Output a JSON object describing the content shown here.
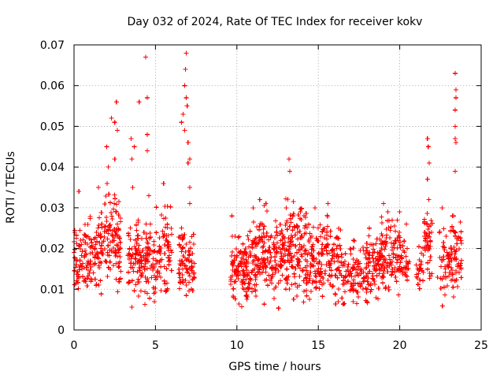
{
  "chart_data": {
    "type": "scatter",
    "title": "Day 032 of 2024, Rate Of TEC Index for receiver kokv",
    "xlabel": "GPS time / hours",
    "ylabel": "ROTI / TECUs",
    "xlim": [
      0,
      25
    ],
    "ylim": [
      0,
      0.07
    ],
    "xticks": [
      0,
      5,
      10,
      15,
      20,
      25
    ],
    "xtick_labels": [
      "0",
      "5",
      "10",
      "15",
      "20",
      "25"
    ],
    "yticks": [
      0,
      0.01,
      0.02,
      0.03,
      0.04,
      0.05,
      0.06,
      0.07
    ],
    "ytick_labels": [
      "0",
      "0.01",
      "0.02",
      "0.03",
      "0.04",
      "0.05",
      "0.06",
      "0.07"
    ],
    "grid": true,
    "marker": "+",
    "color": "#ff0000",
    "clusters": [
      {
        "start": 0.0,
        "end": 0.5,
        "density": 40,
        "low": 0.007,
        "high": 0.026,
        "outliers": [
          [
            0.3,
            0.034
          ]
        ]
      },
      {
        "start": 0.5,
        "end": 1.2,
        "density": 55,
        "low": 0.004,
        "high": 0.028,
        "outliers": []
      },
      {
        "start": 1.2,
        "end": 1.9,
        "density": 55,
        "low": 0.006,
        "high": 0.031,
        "outliers": [
          [
            1.5,
            0.035
          ]
        ]
      },
      {
        "start": 1.9,
        "end": 2.6,
        "density": 60,
        "low": 0.006,
        "high": 0.036,
        "outliers": [
          [
            2.0,
            0.045
          ],
          [
            2.1,
            0.04
          ],
          [
            2.3,
            0.052
          ],
          [
            2.5,
            0.051
          ],
          [
            2.5,
            0.042
          ]
        ]
      },
      {
        "start": 2.6,
        "end": 2.9,
        "density": 35,
        "low": 0.004,
        "high": 0.033,
        "outliers": [
          [
            2.6,
            0.056
          ],
          [
            2.65,
            0.049
          ]
        ]
      },
      {
        "start": 3.3,
        "end": 4.1,
        "density": 70,
        "low": 0.005,
        "high": 0.027,
        "outliers": [
          [
            3.5,
            0.047
          ],
          [
            3.55,
            0.042
          ],
          [
            3.7,
            0.045
          ],
          [
            3.6,
            0.035
          ],
          [
            4.0,
            0.056
          ]
        ]
      },
      {
        "start": 4.1,
        "end": 5.0,
        "density": 75,
        "low": 0.004,
        "high": 0.026,
        "outliers": [
          [
            4.4,
            0.067
          ],
          [
            4.5,
            0.057
          ],
          [
            4.5,
            0.048
          ],
          [
            4.5,
            0.044
          ],
          [
            4.6,
            0.033
          ]
        ]
      },
      {
        "start": 5.0,
        "end": 6.0,
        "density": 70,
        "low": 0.003,
        "high": 0.031,
        "outliers": [
          [
            5.5,
            0.036
          ]
        ]
      },
      {
        "start": 6.4,
        "end": 7.4,
        "density": 80,
        "low": 0.005,
        "high": 0.026,
        "outliers": [
          [
            6.6,
            0.051
          ],
          [
            6.7,
            0.053
          ],
          [
            6.8,
            0.06
          ],
          [
            6.85,
            0.064
          ],
          [
            6.9,
            0.068
          ],
          [
            6.9,
            0.057
          ],
          [
            6.95,
            0.055
          ],
          [
            7.0,
            0.041
          ],
          [
            7.0,
            0.046
          ],
          [
            7.1,
            0.042
          ],
          [
            6.8,
            0.049
          ],
          [
            7.1,
            0.035
          ],
          [
            7.1,
            0.031
          ]
        ]
      },
      {
        "start": 9.6,
        "end": 10.5,
        "density": 80,
        "low": 0.004,
        "high": 0.023,
        "outliers": [
          [
            9.7,
            0.028
          ]
        ]
      },
      {
        "start": 10.5,
        "end": 11.2,
        "density": 75,
        "low": 0.002,
        "high": 0.027,
        "outliers": [
          [
            11.0,
            0.03
          ]
        ]
      },
      {
        "start": 11.2,
        "end": 12.0,
        "density": 75,
        "low": 0.004,
        "high": 0.031,
        "outliers": [
          [
            11.4,
            0.032
          ]
        ]
      },
      {
        "start": 12.0,
        "end": 12.8,
        "density": 70,
        "low": 0.004,
        "high": 0.028,
        "outliers": []
      },
      {
        "start": 12.8,
        "end": 13.6,
        "density": 80,
        "low": 0.003,
        "high": 0.034,
        "outliers": [
          [
            13.2,
            0.042
          ],
          [
            13.25,
            0.039
          ]
        ]
      },
      {
        "start": 13.6,
        "end": 14.5,
        "density": 80,
        "low": 0.003,
        "high": 0.03,
        "outliers": []
      },
      {
        "start": 14.5,
        "end": 15.4,
        "density": 75,
        "low": 0.003,
        "high": 0.028,
        "outliers": [
          [
            14.8,
            0.03
          ]
        ]
      },
      {
        "start": 15.4,
        "end": 16.4,
        "density": 75,
        "low": 0.003,
        "high": 0.03,
        "outliers": [
          [
            15.6,
            0.031
          ]
        ]
      },
      {
        "start": 16.4,
        "end": 17.2,
        "density": 55,
        "low": 0.004,
        "high": 0.022,
        "outliers": []
      },
      {
        "start": 17.2,
        "end": 18.0,
        "density": 55,
        "low": 0.004,
        "high": 0.022,
        "outliers": []
      },
      {
        "start": 18.0,
        "end": 18.8,
        "density": 65,
        "low": 0.005,
        "high": 0.025,
        "outliers": []
      },
      {
        "start": 18.8,
        "end": 19.5,
        "density": 65,
        "low": 0.006,
        "high": 0.029,
        "outliers": [
          [
            19.0,
            0.031
          ]
        ]
      },
      {
        "start": 19.5,
        "end": 20.3,
        "density": 60,
        "low": 0.006,
        "high": 0.027,
        "outliers": [
          [
            20.0,
            0.029
          ]
        ]
      },
      {
        "start": 20.3,
        "end": 20.6,
        "density": 15,
        "low": 0.01,
        "high": 0.02,
        "outliers": [
          [
            20.4,
            0.026
          ]
        ]
      },
      {
        "start": 21.0,
        "end": 21.5,
        "density": 25,
        "low": 0.007,
        "high": 0.022,
        "outliers": []
      },
      {
        "start": 21.5,
        "end": 22.0,
        "density": 45,
        "low": 0.006,
        "high": 0.032,
        "outliers": [
          [
            21.7,
            0.047
          ],
          [
            21.75,
            0.045
          ],
          [
            21.8,
            0.041
          ],
          [
            21.7,
            0.037
          ]
        ]
      },
      {
        "start": 22.3,
        "end": 23.2,
        "density": 55,
        "low": 0.005,
        "high": 0.025,
        "outliers": [
          [
            22.6,
            0.03
          ]
        ]
      },
      {
        "start": 23.2,
        "end": 23.8,
        "density": 55,
        "low": 0.004,
        "high": 0.028,
        "outliers": [
          [
            23.4,
            0.063
          ],
          [
            23.45,
            0.059
          ],
          [
            23.45,
            0.057
          ],
          [
            23.4,
            0.054
          ],
          [
            23.4,
            0.05
          ],
          [
            23.4,
            0.047
          ],
          [
            23.45,
            0.046
          ],
          [
            23.4,
            0.039
          ]
        ]
      }
    ]
  }
}
